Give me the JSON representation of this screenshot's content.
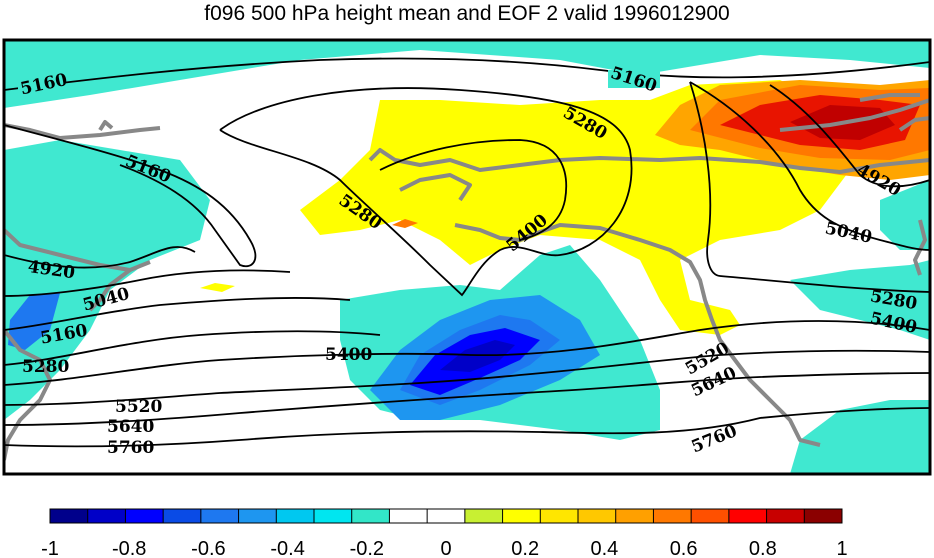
{
  "title": "f096 500 hPa height mean and EOF 2 valid 1996012900",
  "colorbar": {
    "colors": [
      "#00008b",
      "#0000c8",
      "#0000ff",
      "#0a4be6",
      "#1e78f0",
      "#1e96f0",
      "#00c8f0",
      "#00e6f0",
      "#32e6c8",
      "#ffffff",
      "#ffffff",
      "#c8f032",
      "#ffff00",
      "#ffe600",
      "#ffc800",
      "#ffa000",
      "#ff7800",
      "#ff5000",
      "#ff0000",
      "#c80000",
      "#8b0000"
    ],
    "tick_labels": [
      "-1",
      "-0.8",
      "-0.6",
      "-0.4",
      "-0.2",
      "0",
      "0.2",
      "0.4",
      "0.6",
      "0.8",
      "1"
    ]
  },
  "contour_labels": [
    "5160",
    "5160",
    "5160",
    "5280",
    "5280",
    "5400",
    "4920",
    "4920",
    "5040",
    "5040",
    "5160",
    "5280",
    "5400",
    "5280",
    "5400",
    "5520",
    "5520",
    "5640",
    "5640",
    "5760",
    "5760"
  ],
  "palette": {
    "cyan": "#40e8d0",
    "yellow": "#ffff00",
    "orange": "#ffa500",
    "dark_orange": "#ff7800",
    "red": "#e81400",
    "dark_red": "#c00000",
    "blue_light": "#1e96f0",
    "blue": "#1e78f0",
    "blue_dark": "#0000ff",
    "navy": "#0000c8",
    "land": "#888888"
  }
}
